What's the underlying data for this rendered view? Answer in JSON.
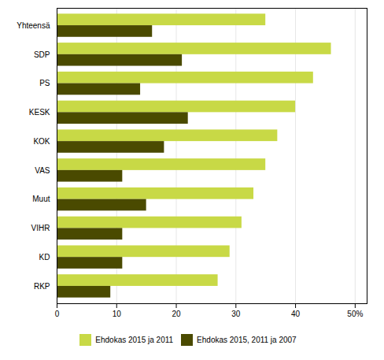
{
  "chart_data": {
    "type": "bar",
    "orientation": "horizontal",
    "categories": [
      "Yhteensä",
      "SDP",
      "PS",
      "KESK",
      "KOK",
      "VAS",
      "Muut",
      "VIHR",
      "KD",
      "RKP"
    ],
    "series": [
      {
        "name": "Ehdokas 2015 ja 2011",
        "color": "#c8d946",
        "values": [
          35,
          46,
          43,
          40,
          37,
          35,
          33,
          31,
          29,
          27
        ]
      },
      {
        "name": "Ehdokas 2015, 2011 ja 2007",
        "color": "#4a4a00",
        "values": [
          16,
          21,
          14,
          22,
          18,
          11,
          15,
          11,
          11,
          9
        ]
      }
    ],
    "xlim": [
      0,
      52
    ],
    "xticks": [
      0,
      10,
      20,
      30,
      40,
      {
        "value": 50,
        "label": "50%"
      }
    ],
    "grid": true,
    "legend": "bottom"
  }
}
